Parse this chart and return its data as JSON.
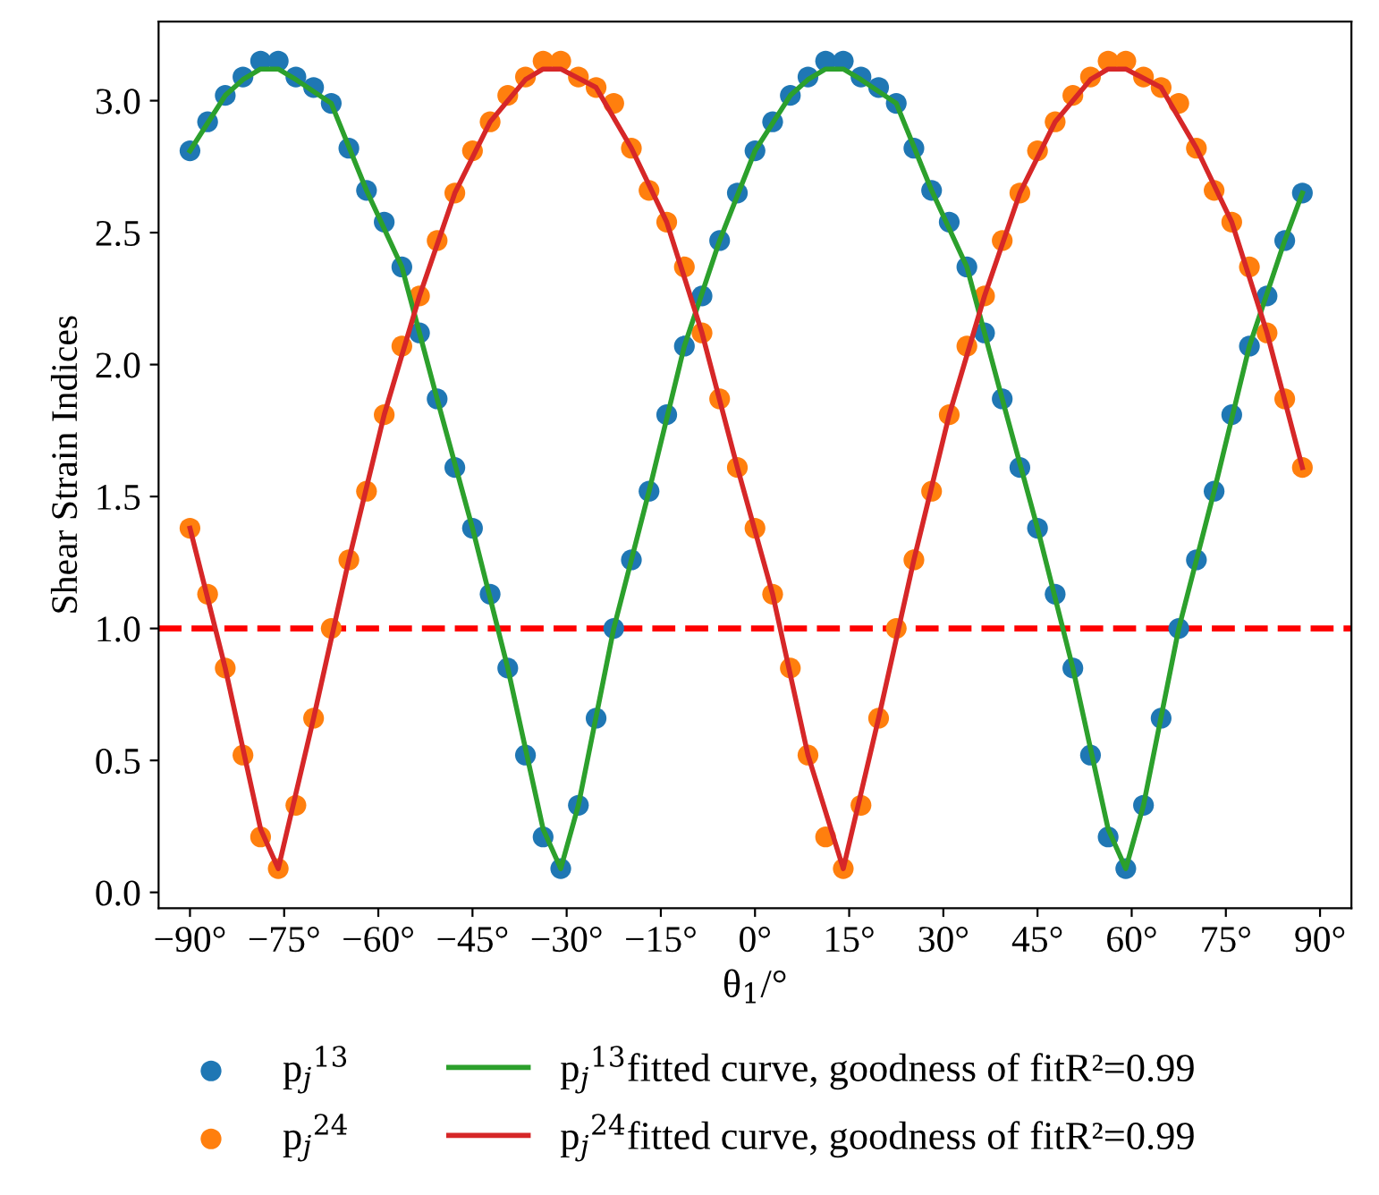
{
  "chart_data": {
    "type": "scatter",
    "xlabel": "θ$_{1}$/°",
    "ylabel": "Shear Strain Indices",
    "x": [
      -90,
      -87.19,
      -84.38,
      -81.56,
      -78.75,
      -75.94,
      -73.13,
      -70.31,
      -67.5,
      -64.69,
      -61.88,
      -59.06,
      -56.25,
      -53.44,
      -50.63,
      -47.81,
      -45,
      -42.19,
      -39.38,
      -36.56,
      -33.75,
      -30.94,
      -28.13,
      -25.31,
      -22.5,
      -19.69,
      -16.88,
      -14.06,
      -11.25,
      -8.44,
      -5.63,
      -2.81,
      0,
      2.81,
      5.63,
      8.44,
      11.25,
      14.06,
      16.88,
      19.69,
      22.5,
      25.31,
      28.13,
      30.94,
      33.75,
      36.56,
      39.38,
      42.19,
      45,
      47.81,
      50.63,
      53.44,
      56.25,
      59.06,
      61.88,
      64.69,
      67.5,
      70.31,
      73.13,
      75.94,
      78.75,
      81.56,
      84.38,
      87.19
    ],
    "series": [
      {
        "name": "p$_{j}$$^{13}$",
        "marker": "circle",
        "color": "#1f77b4",
        "values": [
          2.81,
          2.92,
          3.02,
          3.09,
          3.15,
          3.15,
          3.09,
          3.05,
          2.99,
          2.82,
          2.66,
          2.54,
          2.37,
          2.12,
          1.87,
          1.61,
          1.38,
          1.13,
          0.85,
          0.52,
          0.21,
          0.09,
          0.33,
          0.66,
          1.0,
          1.26,
          1.52,
          1.81,
          2.07,
          2.26,
          2.47,
          2.65,
          2.81,
          2.92,
          3.02,
          3.09,
          3.15,
          3.15,
          3.09,
          3.05,
          2.99,
          2.82,
          2.66,
          2.54,
          2.37,
          2.12,
          1.87,
          1.61,
          1.38,
          1.13,
          0.85,
          0.52,
          0.21,
          0.09,
          0.33,
          0.66,
          1.0,
          1.26,
          1.52,
          1.81,
          2.07,
          2.26,
          2.47,
          2.65
        ]
      },
      {
        "name": "p$_{j}$$^{24}$",
        "marker": "circle",
        "color": "#ff7f0e",
        "values": [
          1.38,
          1.13,
          0.85,
          0.52,
          0.21,
          0.09,
          0.33,
          0.66,
          1.0,
          1.26,
          1.52,
          1.81,
          2.07,
          2.26,
          2.47,
          2.65,
          2.81,
          2.92,
          3.02,
          3.09,
          3.15,
          3.15,
          3.09,
          3.05,
          2.99,
          2.82,
          2.66,
          2.54,
          2.37,
          2.12,
          1.87,
          1.61,
          1.38,
          1.13,
          0.85,
          0.52,
          0.21,
          0.09,
          0.33,
          0.66,
          1.0,
          1.26,
          1.52,
          1.81,
          2.07,
          2.26,
          2.47,
          2.65,
          2.81,
          2.92,
          3.02,
          3.09,
          3.15,
          3.15,
          3.09,
          3.05,
          2.99,
          2.82,
          2.66,
          2.54,
          2.37,
          2.12,
          1.87,
          1.61
        ]
      },
      {
        "name": "p$_{j}$$^{13}$fitted curve, goodness of fitR²=0.99",
        "type": "line",
        "line_style": "solid",
        "color": "#2ca02c",
        "x": [
          -90,
          -84.38,
          -81.56,
          -78.75,
          -75.94,
          -73.13,
          -67.5,
          -61.88,
          -56.25,
          -50.63,
          -45,
          -39.38,
          -33.75,
          -30.94,
          -28.13,
          -22.5,
          -16.88,
          -11.25,
          -5.63,
          0,
          5.63,
          8.44,
          11.25,
          14.06,
          16.88,
          22.5,
          28.13,
          33.75,
          39.38,
          45,
          50.63,
          56.25,
          59.06,
          61.88,
          67.5,
          73.13,
          78.75,
          84.38,
          87.19
        ],
        "values": [
          2.81,
          3.02,
          3.08,
          3.12,
          3.12,
          3.08,
          2.99,
          2.66,
          2.37,
          1.87,
          1.38,
          0.85,
          0.24,
          0.09,
          0.33,
          1.0,
          1.52,
          2.07,
          2.47,
          2.81,
          3.02,
          3.08,
          3.12,
          3.12,
          3.08,
          2.99,
          2.66,
          2.37,
          1.87,
          1.38,
          0.85,
          0.24,
          0.09,
          0.33,
          1.0,
          1.52,
          2.07,
          2.47,
          2.65
        ]
      },
      {
        "name": "p$_{j}$$^{24}$fitted curve, goodness of fitR²=0.99",
        "type": "line",
        "line_style": "solid",
        "color": "#d62728",
        "x": [
          -90,
          -84.38,
          -78.75,
          -75.94,
          -70.31,
          -64.69,
          -59.06,
          -53.44,
          -47.81,
          -42.19,
          -36.56,
          -33.75,
          -30.94,
          -25.31,
          -19.69,
          -14.06,
          -8.44,
          -2.81,
          2.81,
          8.44,
          14.06,
          19.69,
          25.31,
          30.94,
          36.56,
          42.19,
          47.81,
          53.44,
          56.25,
          59.06,
          64.69,
          70.31,
          75.94,
          81.56,
          87.19
        ],
        "values": [
          1.38,
          0.85,
          0.24,
          0.09,
          0.66,
          1.26,
          1.81,
          2.26,
          2.65,
          2.92,
          3.08,
          3.12,
          3.12,
          3.05,
          2.82,
          2.54,
          2.12,
          1.61,
          1.13,
          0.52,
          0.09,
          0.66,
          1.26,
          1.81,
          2.26,
          2.65,
          2.92,
          3.08,
          3.12,
          3.12,
          3.05,
          2.82,
          2.54,
          2.12,
          1.61
        ]
      }
    ],
    "xlim": [
      -95,
      95
    ],
    "xticks": [
      {
        "value": -90,
        "label": "−90°"
      },
      {
        "value": -75,
        "label": "−75°"
      },
      {
        "value": -60,
        "label": "−60°"
      },
      {
        "value": -45,
        "label": "−45°"
      },
      {
        "value": -30,
        "label": "−30°"
      },
      {
        "value": -15,
        "label": "−15°"
      },
      {
        "value": 0,
        "label": "0°"
      },
      {
        "value": 15,
        "label": "15°"
      },
      {
        "value": 30,
        "label": "30°"
      },
      {
        "value": 45,
        "label": "45°"
      },
      {
        "value": 60,
        "label": "60°"
      },
      {
        "value": 75,
        "label": "75°"
      },
      {
        "value": 90,
        "label": "90°"
      }
    ],
    "ylim": [
      -0.06,
      3.3
    ],
    "yticks": [
      {
        "value": 0,
        "label": "0.0"
      },
      {
        "value": 0.5,
        "label": "0.5"
      },
      {
        "value": 1,
        "label": "1.0"
      },
      {
        "value": 1.5,
        "label": "1.5"
      },
      {
        "value": 2,
        "label": "2.0"
      },
      {
        "value": 2.5,
        "label": "2.5"
      },
      {
        "value": 3,
        "label": "3.0"
      }
    ],
    "ref_lines": [
      {
        "axis": "y",
        "value": 1,
        "color": "#ff0000",
        "line_style": "dashed"
      }
    ],
    "grid": false,
    "legend": "bottom"
  }
}
